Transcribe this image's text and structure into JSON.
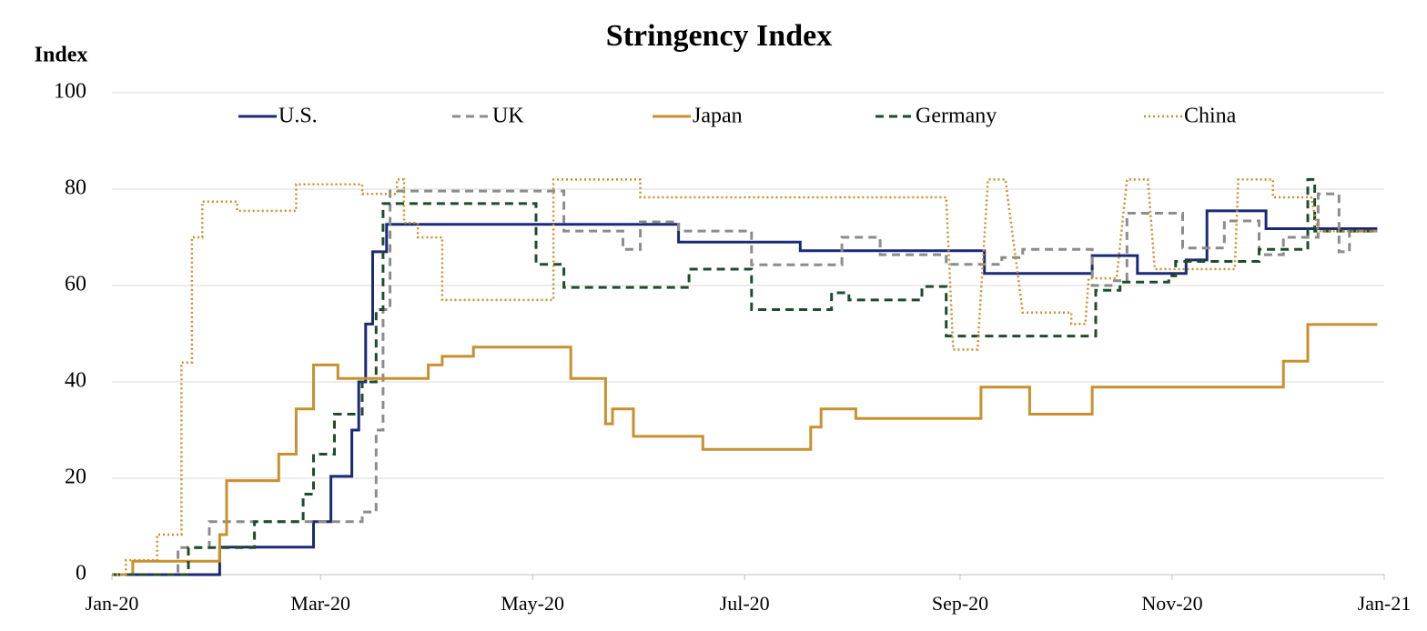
{
  "chart_data": {
    "type": "line",
    "title": "Stringency Index",
    "ylabel": "Index",
    "xlim": [
      0,
      366
    ],
    "xticks": [
      {
        "value": 0,
        "label": "Jan-20"
      },
      {
        "value": 60,
        "label": "Mar-20"
      },
      {
        "value": 121,
        "label": "May-20"
      },
      {
        "value": 182,
        "label": "Jul-20"
      },
      {
        "value": 244,
        "label": "Sep-20"
      },
      {
        "value": 305,
        "label": "Nov-20"
      },
      {
        "value": 366,
        "label": "Jan-21"
      }
    ],
    "ylim": [
      0,
      100
    ],
    "yticks": [
      0,
      20,
      40,
      60,
      80,
      100
    ],
    "grid": true,
    "legend": "top",
    "series": [
      {
        "name": "U.S.",
        "color": "#1b2a78",
        "style": "solid",
        "x": [
          0,
          31,
          31,
          58,
          58,
          63,
          63,
          69,
          69,
          71,
          71,
          73,
          73,
          75,
          75,
          79,
          79,
          163,
          163,
          198,
          198,
          251,
          251,
          282,
          282,
          295,
          295,
          309,
          309,
          315,
          315,
          332,
          332,
          364
        ],
        "values": [
          0,
          0,
          5.7,
          5.7,
          11,
          11,
          20.4,
          20.4,
          30,
          30,
          40,
          40,
          52,
          52,
          67,
          67,
          72.7,
          72.7,
          69,
          69,
          67.2,
          67.2,
          62.5,
          62.5,
          66.2,
          66.2,
          62.5,
          62.5,
          65.3,
          65.3,
          75.5,
          75.5,
          71.8,
          71.8
        ]
      },
      {
        "name": "UK",
        "color": "#8c8c8c",
        "style": "dashed",
        "x": [
          0,
          19,
          19,
          28,
          28,
          72,
          72,
          76,
          76,
          78,
          78,
          80,
          80,
          130,
          130,
          147,
          147,
          152,
          152,
          163,
          163,
          184,
          184,
          210,
          210,
          221,
          221,
          240,
          240,
          256,
          256,
          262,
          262,
          282,
          282,
          288,
          288,
          292,
          292,
          308,
          308,
          320,
          320,
          330,
          330,
          337,
          337,
          347,
          347,
          353,
          353,
          356,
          356,
          364
        ],
        "values": [
          0,
          0,
          5.6,
          5.6,
          11,
          11,
          13,
          13,
          30,
          30,
          55,
          55,
          79.6,
          79.6,
          71.3,
          71.3,
          67.5,
          67.5,
          73.2,
          73.2,
          71.3,
          71.3,
          64.3,
          64.3,
          70,
          70,
          66.4,
          66.4,
          64.4,
          64.4,
          65.8,
          65.8,
          67.5,
          67.5,
          60,
          60,
          61,
          61,
          75,
          75,
          67.8,
          67.8,
          73.4,
          73.4,
          66.4,
          66.4,
          70,
          70,
          79,
          79,
          67,
          67,
          71.3,
          71.3
        ]
      },
      {
        "name": "Japan",
        "color": "#c8902e",
        "style": "solid",
        "x": [
          0,
          6,
          6,
          31,
          31,
          33,
          33,
          48,
          48,
          53,
          53,
          58,
          58,
          65,
          65,
          91,
          91,
          95,
          95,
          104,
          104,
          132,
          132,
          142,
          142,
          144,
          144,
          150,
          150,
          170,
          170,
          201,
          201,
          204,
          204,
          214,
          214,
          250,
          250,
          264,
          264,
          282,
          282,
          337,
          337,
          344,
          344,
          364
        ],
        "values": [
          0,
          0,
          2.8,
          2.8,
          8.3,
          8.3,
          19.5,
          19.5,
          25,
          25,
          34.4,
          34.4,
          43.5,
          43.5,
          40.7,
          40.7,
          43.5,
          43.5,
          45.3,
          45.3,
          47.2,
          47.2,
          40.7,
          40.7,
          31.3,
          31.3,
          34.4,
          34.4,
          28.7,
          28.7,
          26,
          26,
          30.6,
          30.6,
          34.4,
          34.4,
          32.4,
          32.4,
          38.9,
          38.9,
          33.3,
          33.3,
          38.9,
          38.9,
          44.3,
          44.3,
          51.9,
          51.9
        ]
      },
      {
        "name": "Germany",
        "color": "#1e4d2b",
        "style": "dashed",
        "x": [
          0,
          22,
          22,
          41,
          41,
          55,
          55,
          58,
          58,
          64,
          64,
          72,
          72,
          76,
          76,
          78,
          78,
          122,
          122,
          130,
          130,
          166,
          166,
          184,
          184,
          207,
          207,
          212,
          212,
          233,
          233,
          240,
          240,
          283,
          283,
          290,
          290,
          304,
          304,
          306,
          306,
          330,
          330,
          344,
          344,
          346,
          346,
          364
        ],
        "values": [
          0,
          0,
          5.6,
          5.6,
          11,
          11,
          16.7,
          16.7,
          25,
          25,
          33.3,
          33.3,
          40,
          40,
          55,
          55,
          77,
          77,
          64.4,
          64.4,
          59.6,
          59.6,
          63.4,
          63.4,
          55,
          55,
          58.5,
          58.5,
          57,
          57,
          59.8,
          59.8,
          49.5,
          49.5,
          59,
          59,
          60.7,
          60.7,
          62,
          62,
          65,
          65,
          67.5,
          67.5,
          82,
          82,
          71.3,
          71.3
        ]
      },
      {
        "name": "China",
        "color": "#c8902e",
        "style": "dotted",
        "x": [
          0,
          4,
          4,
          13,
          13,
          20,
          20,
          23,
          23,
          26,
          26,
          36,
          36,
          53,
          53,
          72,
          72,
          82,
          82,
          84,
          84,
          88,
          88,
          95,
          95,
          127,
          127,
          152,
          152,
          240,
          242,
          249,
          252,
          257,
          262,
          276,
          276,
          280,
          281,
          289,
          292,
          298,
          300,
          323,
          324,
          334,
          334,
          345,
          347,
          364
        ],
        "values": [
          0,
          0,
          3,
          3,
          8.3,
          8.3,
          44,
          44,
          70,
          70,
          77.4,
          77.4,
          75.5,
          75.5,
          81,
          81,
          79,
          79,
          82,
          82,
          73,
          73,
          70,
          70,
          57,
          57,
          82,
          82,
          78.3,
          78.3,
          46.7,
          46.7,
          82,
          82,
          54.4,
          54.4,
          52,
          52,
          61.5,
          61.5,
          82,
          82,
          63.4,
          63.4,
          82,
          82,
          78.3,
          78.3,
          71.3,
          71.3
        ]
      }
    ]
  }
}
